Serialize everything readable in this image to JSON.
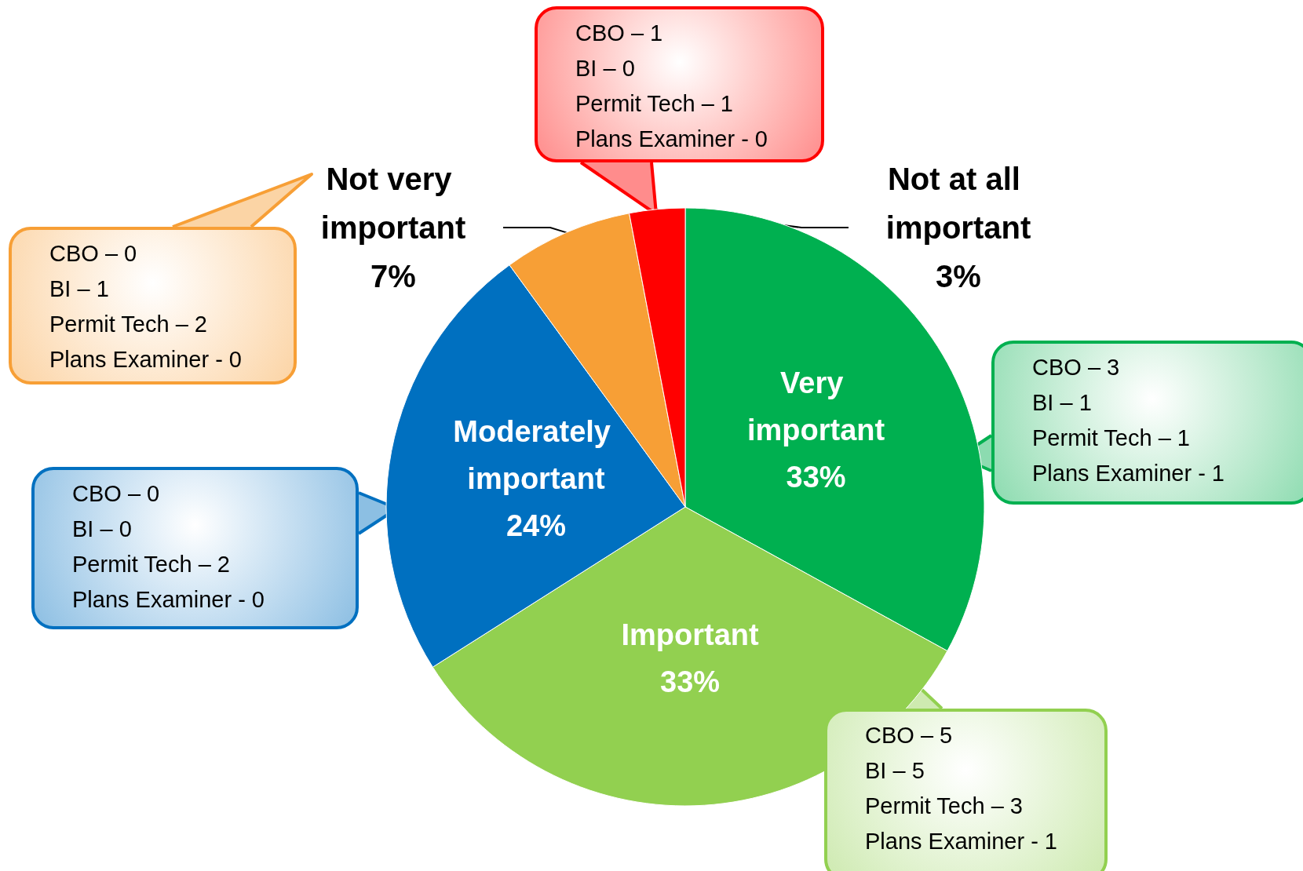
{
  "chart_data": {
    "type": "pie",
    "categories": [
      "Very important",
      "Important",
      "Moderately important",
      "Not very important",
      "Not at all important"
    ],
    "values": [
      33,
      33,
      24,
      7,
      3
    ],
    "value_labels": [
      "33%",
      "33%",
      "24%",
      "7%",
      "3%"
    ],
    "colors": [
      "#00b050",
      "#92d050",
      "#0070c0",
      "#f79f36",
      "#ff0000"
    ],
    "legend": false,
    "annotations": [
      "CBO – 3\nBI – 1\nPermit Tech – 1\nPlans Examiner - 1",
      "CBO – 5\nBI – 5\nPermit Tech – 3\nPlans Examiner - 1",
      "CBO – 0\nBI – 0\nPermit Tech – 2\nPlans Examiner - 0",
      "CBO – 0\nBI – 1\nPermit Tech – 2\nPlans Examiner - 0",
      "CBO – 1\nBI – 0\nPermit Tech – 1\nPlans Examiner - 0"
    ]
  }
}
